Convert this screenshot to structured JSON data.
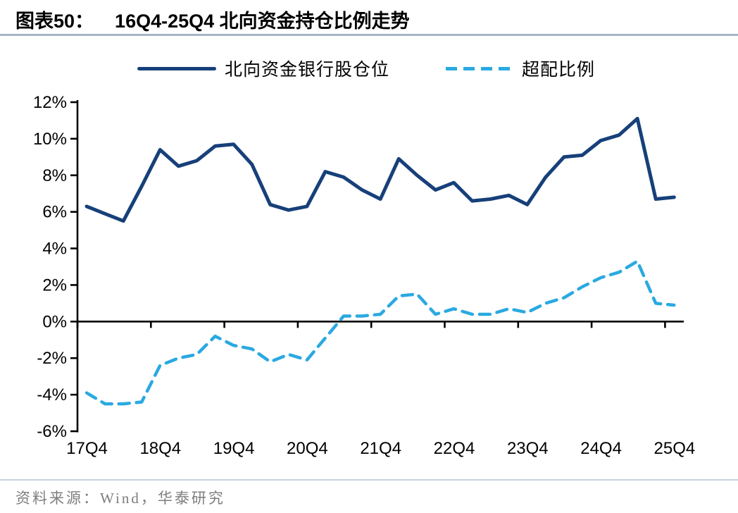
{
  "header": {
    "title_label": "图表50：",
    "title_text": "16Q4-25Q4 北向资金持仓比例走势"
  },
  "footer": {
    "source_text": "资料来源：Wind，华泰研究"
  },
  "colors": {
    "solid_series": "#17407a",
    "dashed_series": "#2aa9e1",
    "axis": "#000000",
    "title_rule": "#a6b5c6",
    "footer_rule": "#c8d3df",
    "footer_text": "#7e7e7e"
  },
  "chart_data": {
    "type": "line",
    "title": "16Q4-25Q4 北向资金持仓比例走势",
    "xlabel": "",
    "ylabel": "",
    "ylim": [
      -6,
      12
    ],
    "y_tick_step": 2,
    "grid": false,
    "legend_position": "top-center",
    "y_tick_labels": [
      "12%",
      "10%",
      "8%",
      "6%",
      "4%",
      "2%",
      "0%",
      "-2%",
      "-4%",
      "-6%"
    ],
    "x_tick_labels": [
      "17Q4",
      "18Q4",
      "19Q4",
      "20Q4",
      "21Q4",
      "22Q4",
      "23Q4",
      "24Q4",
      "25Q4"
    ],
    "categories": [
      "17Q4",
      "18Q1",
      "18Q2",
      "18Q3",
      "18Q4",
      "19Q1",
      "19Q2",
      "19Q3",
      "19Q4",
      "20Q1",
      "20Q2",
      "20Q3",
      "20Q4",
      "21Q1",
      "21Q2",
      "21Q3",
      "21Q4",
      "22Q1",
      "22Q2",
      "22Q3",
      "22Q4",
      "23Q1",
      "23Q2",
      "23Q3",
      "23Q4",
      "24Q1",
      "24Q2",
      "24Q3",
      "24Q4",
      "25Q1",
      "25Q2",
      "25Q3",
      "25Q4"
    ],
    "series": [
      {
        "name": "北向资金银行股仓位",
        "style": "solid",
        "color": "#17407a",
        "values": [
          6.3,
          5.9,
          5.5,
          7.4,
          9.4,
          8.5,
          8.8,
          9.6,
          9.7,
          8.6,
          6.4,
          6.1,
          6.3,
          8.2,
          7.9,
          7.2,
          6.7,
          8.9,
          8.0,
          7.2,
          7.6,
          6.6,
          6.7,
          6.9,
          6.4,
          7.9,
          9.0,
          9.1,
          9.9,
          10.2,
          11.1,
          6.7,
          6.8
        ]
      },
      {
        "name": "超配比例",
        "style": "dashed",
        "color": "#2aa9e1",
        "values": [
          -3.9,
          -4.5,
          -4.5,
          -4.4,
          -2.4,
          -2.0,
          -1.8,
          -0.8,
          -1.3,
          -1.5,
          -2.2,
          -1.8,
          -2.1,
          -0.9,
          0.3,
          0.3,
          0.4,
          1.4,
          1.5,
          0.4,
          0.7,
          0.4,
          0.4,
          0.7,
          0.5,
          1.0,
          1.3,
          1.9,
          2.4,
          2.7,
          3.3,
          1.0,
          0.9
        ]
      }
    ]
  }
}
